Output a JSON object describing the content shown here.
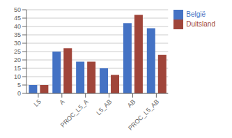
{
  "chart_data": {
    "type": "bar",
    "categories": [
      "L5",
      "A",
      "PROC_L5_A",
      "L5_AB",
      "AB",
      "PROC_L5_AB"
    ],
    "series": [
      {
        "name": "België",
        "color": "#4472C4",
        "values": [
          5,
          25,
          19,
          15,
          42,
          39
        ]
      },
      {
        "name": "Duitsland",
        "color": "#A0453A",
        "values": [
          5,
          27,
          19,
          11,
          47,
          23
        ]
      }
    ],
    "ylim": [
      0,
      50
    ],
    "yticks": [
      0,
      5,
      10,
      15,
      20,
      25,
      30,
      35,
      40,
      45,
      50
    ],
    "grid": true,
    "legend": "upper right"
  }
}
